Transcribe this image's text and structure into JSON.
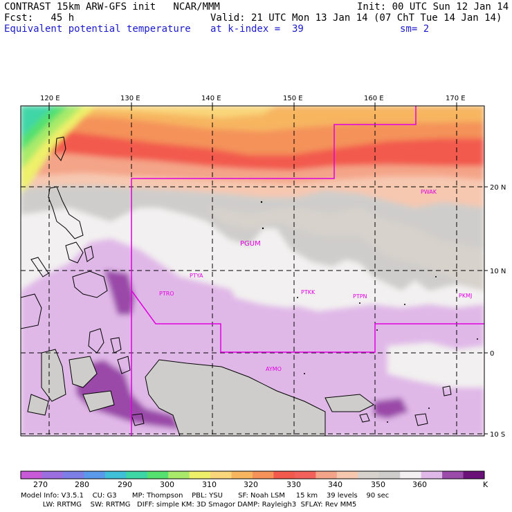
{
  "header": {
    "l1": "CONTRAST 15km ARW-GFS init   NCAR/MMM",
    "l2": "Fcst:   45 h",
    "l3": "Equivalent potential temperature",
    "r1": "Init: 00 UTC Sun 12 Jan 14",
    "r2": "Valid: 21 UTC Mon 13 Jan 14 (07 ChT Tue 14 Jan 14)",
    "r3a": "at k-index =  39",
    "r3b": "sm= 2"
  },
  "map": {
    "lon_labels": [
      "120 E",
      "130 E",
      "140 E",
      "150 E",
      "160 E",
      "170 E"
    ],
    "lat_labels": [
      "20 N",
      "10 N",
      "0",
      "10 S"
    ],
    "stations": [
      "PWAK",
      "PGUM",
      "PTYA",
      "PTRO",
      "PTKK",
      "PTPN",
      "PKMJ",
      "AYMO"
    ]
  },
  "colorbar": {
    "colors": [
      "#c85ad8",
      "#9b6fe0",
      "#7d7ee6",
      "#5b9aea",
      "#3fc0d6",
      "#3fd6a6",
      "#55e070",
      "#a9ea6b",
      "#eef06a",
      "#f9d67a",
      "#f7b560",
      "#f4925a",
      "#f25a4e",
      "#f2625a",
      "#f4a488",
      "#f6c8b0",
      "#d8d2cc",
      "#cfcdcb",
      "#f2f0f0",
      "#e0b8e8",
      "#9a4aa8",
      "#6a127a"
    ],
    "labels": [
      "270",
      "280",
      "290",
      "300",
      "310",
      "320",
      "330",
      "340",
      "350",
      "360",
      "K"
    ]
  },
  "footer": {
    "line1": "Model Info: V3.5.1    CU: G3       MP: Thompson    PBL: YSU       SF: Noah LSM     15 km    39 levels    90 sec",
    "line2": "          LW: RRTMG    SW: RRTMG   DIFF: simple KM: 3D Smagor DAMP: Rayleigh3  SFLAY: Rev MM5"
  },
  "colors": {
    "magenta": "#e000e0",
    "header_blue": "#1a1ad0"
  }
}
